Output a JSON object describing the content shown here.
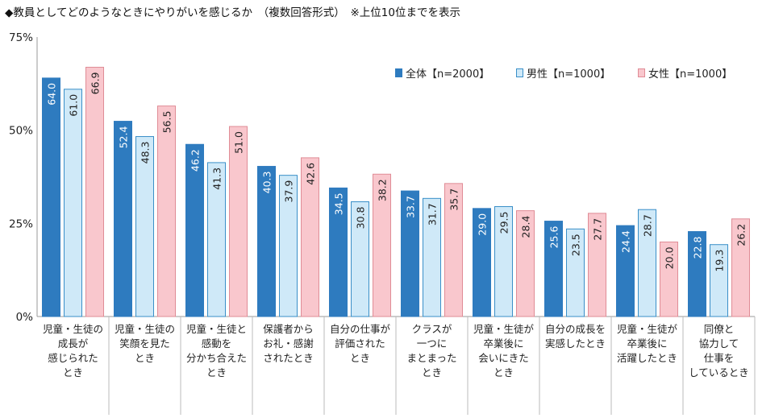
{
  "title": "◆教員としてどのようなときにやりがいを感じるか　（複数回答形式）　※上位10位までを表示",
  "chart_data": {
    "type": "bar",
    "y_ticks": [
      "75%",
      "50%",
      "25%",
      "0%"
    ],
    "ylim": [
      0,
      75
    ],
    "grid": false,
    "legend_position": "top-right",
    "categories": [
      "児童・生徒の\n成長が\n感じられた\nとき",
      "児童・生徒の\n笑顔を見た\nとき",
      "児童・生徒と\n感動を\n分かち合えた\nとき",
      "保護者から\nお礼・感謝\nされたとき",
      "自分の仕事が\n評価された\nとき",
      "クラスが\n一つに\nまとまった\nとき",
      "児童・生徒が\n卒業後に\n会いにきた\nとき",
      "自分の成長を\n実感したとき",
      "児童・生徒が\n卒業後に\n活躍したとき",
      "同僚と\n協力して\n仕事を\nしているとき"
    ],
    "series": [
      {
        "name": "全体【n=2000】",
        "color": "#2e7bbf",
        "border": "#2e7bbf",
        "label_color": "#ffffff",
        "values": [
          64.0,
          52.4,
          46.2,
          40.3,
          34.5,
          33.7,
          29.0,
          25.6,
          24.4,
          22.8
        ]
      },
      {
        "name": "男性【n=1000】",
        "color": "#cfe9f8",
        "border": "#3a8fc8",
        "label_color": "#222222",
        "values": [
          61.0,
          48.3,
          41.3,
          37.9,
          30.8,
          31.7,
          29.5,
          23.5,
          28.7,
          19.3
        ]
      },
      {
        "name": "女性【n=1000】",
        "color": "#f9c7cd",
        "border": "#e08c96",
        "label_color": "#222222",
        "values": [
          66.9,
          56.5,
          51.0,
          42.6,
          38.2,
          35.7,
          28.4,
          27.7,
          20.0,
          26.2
        ]
      }
    ]
  }
}
